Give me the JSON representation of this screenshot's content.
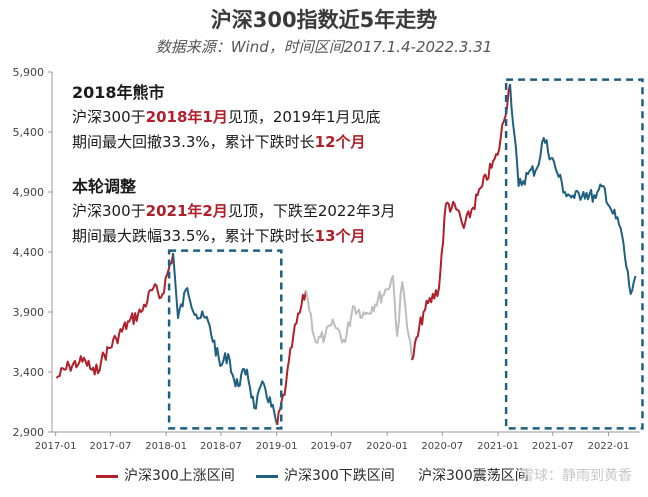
{
  "title": "沪深300指数近5年走势",
  "subtitle": "数据来源：Wind，时间区间2017.1.4-2022.3.31",
  "annotation_2018": {
    "heading": "2018年熊市",
    "line1_pre": "沪深300于",
    "line1_hl": "2018年1月",
    "line1_post": "见顶，2019年1月见底",
    "line2_pre": "期间最大回撤33.3%，累计下跌时长",
    "line2_hl": "12个月"
  },
  "annotation_2021": {
    "heading": "本轮调整",
    "line1_pre": "沪深300于",
    "line1_hl": "2021年2月",
    "line1_post": "见顶，下跌至2022年3月",
    "line2_pre": "期间最大跌幅33.5%，累计下跌时长",
    "line2_hl": "13个月"
  },
  "legend": {
    "up": "沪深300上涨区间",
    "down": "沪深300下跌区间",
    "flat": "沪深300震荡区间"
  },
  "watermark": "雪球：静雨到黄香",
  "colors": {
    "up": "#b0202a",
    "down": "#1f5f7f",
    "flat": "#bdbdbd",
    "box": "#1f5f7f",
    "highlight": "#b0202a"
  },
  "chart_data": {
    "type": "line",
    "title": "沪深300指数近5年走势",
    "subtitle": "数据来源：Wind，时间区间2017.1.4-2022.3.31",
    "x_range": [
      "2016-12-20",
      "2022-04-15"
    ],
    "ylim": [
      2900,
      5900
    ],
    "yticks": [
      "2,900",
      "3,400",
      "3,900",
      "4,400",
      "4,900",
      "5,400",
      "5,900"
    ],
    "ytick_values": [
      2900,
      3400,
      3900,
      4400,
      4900,
      5400,
      5900
    ],
    "xticks": [
      "2017-01",
      "2017-07",
      "2018-01",
      "2018-07",
      "2019-01",
      "2019-07",
      "2020-01",
      "2020-07",
      "2021-01",
      "2021-07",
      "2022-01"
    ],
    "xtick_dates": [
      "2017-01-01",
      "2017-07-01",
      "2018-01-01",
      "2018-07-01",
      "2019-01-01",
      "2019-07-01",
      "2020-01-01",
      "2020-07-01",
      "2021-01-01",
      "2021-07-01",
      "2022-01-01"
    ],
    "series": [
      {
        "name": "沪深300上涨区间",
        "color_key": "up",
        "points": [
          [
            "2017-01-04",
            3350
          ],
          [
            "2017-02-15",
            3450
          ],
          [
            "2017-03-20",
            3480
          ],
          [
            "2017-04-10",
            3490
          ],
          [
            "2017-05-10",
            3380
          ],
          [
            "2017-06-01",
            3500
          ],
          [
            "2017-07-20",
            3680
          ],
          [
            "2017-09-01",
            3820
          ],
          [
            "2017-10-10",
            3900
          ],
          [
            "2017-11-20",
            4100
          ],
          [
            "2017-12-15",
            4020
          ],
          [
            "2018-01-24",
            4390
          ]
        ]
      },
      {
        "name": "沪深300下跌区间",
        "color_key": "down",
        "points": [
          [
            "2018-01-24",
            4390
          ],
          [
            "2018-02-09",
            3850
          ],
          [
            "2018-03-12",
            4100
          ],
          [
            "2018-04-10",
            3880
          ],
          [
            "2018-05-20",
            3820
          ],
          [
            "2018-06-29",
            3450
          ],
          [
            "2018-07-25",
            3550
          ],
          [
            "2018-08-18",
            3280
          ],
          [
            "2018-09-25",
            3420
          ],
          [
            "2018-10-19",
            3100
          ],
          [
            "2018-11-20",
            3300
          ],
          [
            "2019-01-03",
            2960
          ]
        ]
      },
      {
        "name": "沪深300上涨区间",
        "color_key": "up",
        "points": [
          [
            "2019-01-03",
            2960
          ],
          [
            "2019-02-01",
            3300
          ],
          [
            "2019-02-25",
            3700
          ],
          [
            "2019-04-08",
            4080
          ]
        ]
      },
      {
        "name": "沪深300震荡区间",
        "color_key": "flat",
        "points": [
          [
            "2019-04-08",
            4080
          ],
          [
            "2019-05-10",
            3650
          ],
          [
            "2019-06-10",
            3700
          ],
          [
            "2019-07-10",
            3800
          ],
          [
            "2019-08-15",
            3650
          ],
          [
            "2019-09-10",
            3950
          ],
          [
            "2019-10-20",
            3880
          ],
          [
            "2019-12-31",
            4090
          ],
          [
            "2020-01-20",
            4200
          ],
          [
            "2020-02-03",
            3700
          ],
          [
            "2020-02-20",
            4150
          ],
          [
            "2020-03-23",
            3500
          ]
        ]
      },
      {
        "name": "沪深300上涨区间",
        "color_key": "up",
        "points": [
          [
            "2020-03-23",
            3500
          ],
          [
            "2020-04-30",
            3900
          ],
          [
            "2020-06-20",
            4100
          ],
          [
            "2020-07-13",
            4800
          ],
          [
            "2020-08-20",
            4750
          ],
          [
            "2020-09-10",
            4600
          ],
          [
            "2020-11-10",
            4950
          ],
          [
            "2020-12-31",
            5210
          ],
          [
            "2021-02-10",
            5800
          ]
        ]
      },
      {
        "name": "沪深300下跌区间",
        "color_key": "down",
        "points": [
          [
            "2021-02-10",
            5800
          ],
          [
            "2021-03-10",
            4950
          ],
          [
            "2021-04-10",
            5050
          ],
          [
            "2021-05-10",
            5100
          ],
          [
            "2021-06-01",
            5350
          ],
          [
            "2021-07-10",
            5100
          ],
          [
            "2021-08-10",
            4900
          ],
          [
            "2021-09-10",
            4850
          ],
          [
            "2021-10-10",
            4900
          ],
          [
            "2021-11-20",
            4850
          ],
          [
            "2021-12-15",
            4950
          ],
          [
            "2022-01-10",
            4750
          ],
          [
            "2022-02-10",
            4600
          ],
          [
            "2022-03-15",
            4050
          ],
          [
            "2022-03-31",
            4200
          ]
        ]
      }
    ],
    "highlight_boxes": [
      {
        "start": "2018-01-24",
        "end": "2019-01-03",
        "ymin": 2930,
        "ymax": 4395,
        "label": "2018年熊市"
      },
      {
        "start": "2021-02-10",
        "end": "2022-04-10",
        "ymin": 2930,
        "ymax": 5820,
        "label": "本轮调整"
      }
    ]
  }
}
